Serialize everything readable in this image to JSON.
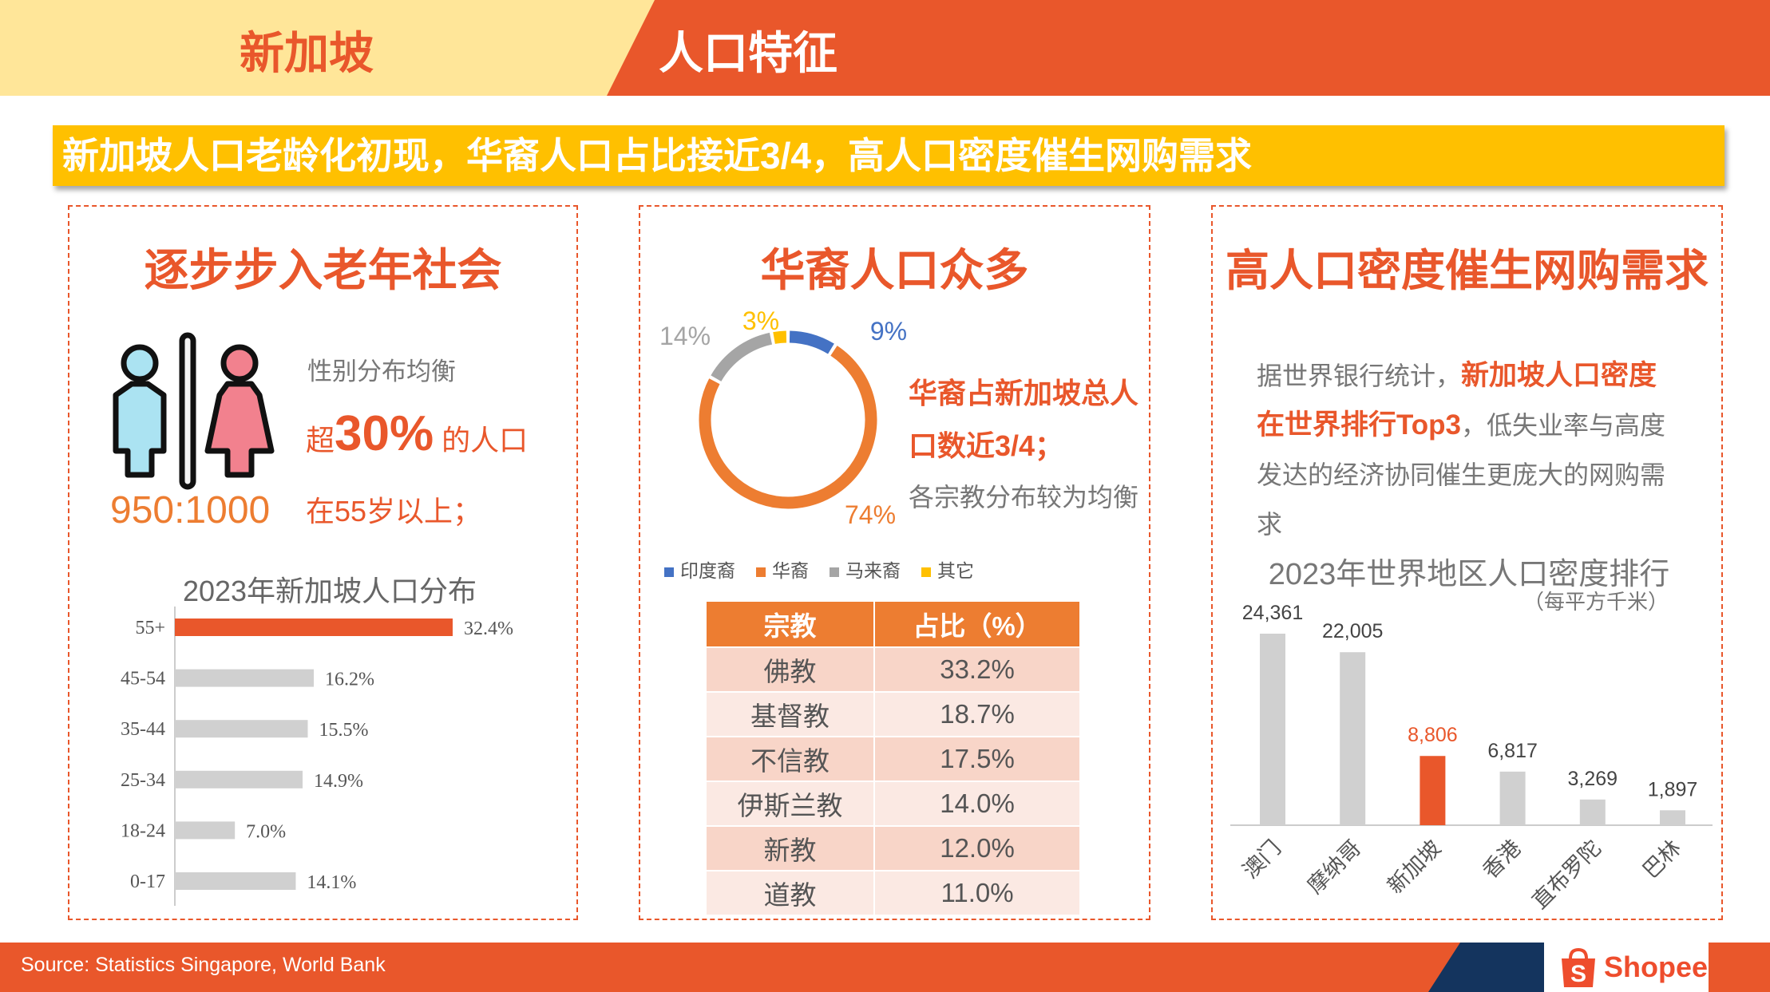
{
  "header": {
    "country": "新加坡",
    "topic": "人口特征"
  },
  "banner": "新加坡人口老龄化初现，华裔人口占比接近3/4，高人口密度催生网购需求",
  "left": {
    "title": "逐步步入老年社会",
    "ratio": "950:1000",
    "gender_text": "性别分布均衡",
    "age_prefix": "超",
    "age_big": "30%",
    "age_suffix": " 的人口",
    "age_line2": "在55岁以上；"
  },
  "middle": {
    "title": "华裔人口众多",
    "text1": "华裔占新加坡总人",
    "text2": "口数近3/4；",
    "text3": "各宗教分布较为均衡",
    "table": {
      "headers": [
        "宗教",
        "占比（%）"
      ],
      "rows": [
        [
          "佛教",
          "33.2%"
        ],
        [
          "基督教",
          "18.7%"
        ],
        [
          "不信教",
          "17.5%"
        ],
        [
          "伊斯兰教",
          "14.0%"
        ],
        [
          "新教",
          "12.0%"
        ],
        [
          "道教",
          "11.0%"
        ]
      ]
    }
  },
  "right": {
    "title": "高人口密度催生网购需求",
    "p_gray1": "据世界银行统计，",
    "p_org1": "新加坡人口密度",
    "p_org2": "在世界排行Top3",
    "p_gray2": "，低失业率与高度",
    "p_gray3": "发达的经济协同催生更庞大的网购需",
    "p_gray4": "求"
  },
  "footer": {
    "source": "Source: Statistics Singapore, World Bank",
    "logo": "Shopee"
  },
  "colors": {
    "orange": "#E9572B",
    "yellow": "#FFC000",
    "gray_bar": "#D0D0D0",
    "blue": "#4472C4",
    "donut_orange": "#ED7D31",
    "donut_gray": "#A5A5A5"
  },
  "chart_data": [
    {
      "type": "bar",
      "orientation": "horizontal",
      "title": "2023年新加坡人口分布",
      "categories": [
        "55+",
        "45-54",
        "35-44",
        "25-34",
        "18-24",
        "0-17"
      ],
      "values": [
        32.4,
        16.2,
        15.5,
        14.9,
        7.0,
        14.1
      ],
      "labels": [
        "32.4%",
        "16.2%",
        "15.5%",
        "14.9%",
        "7.0%",
        "14.1%"
      ],
      "highlight": "55+"
    },
    {
      "type": "pie",
      "donut": true,
      "categories": [
        "印度裔",
        "华裔",
        "马来裔",
        "其它"
      ],
      "values": [
        9,
        74,
        14,
        3
      ],
      "labels": [
        "9%",
        "74%",
        "14%",
        "3%"
      ],
      "legend": "bottom"
    },
    {
      "type": "bar",
      "title": "2023年世界地区人口密度排行",
      "subtitle": "（每平方千米）",
      "categories": [
        "澳门",
        "摩纳哥",
        "新加坡",
        "香港",
        "直布罗陀",
        "巴林"
      ],
      "values": [
        24361,
        22005,
        8806,
        6817,
        3269,
        1897
      ],
      "labels": [
        "24,361",
        "22,005",
        "8,806",
        "6,817",
        "3,269",
        "1,897"
      ],
      "highlight": "新加坡"
    }
  ]
}
